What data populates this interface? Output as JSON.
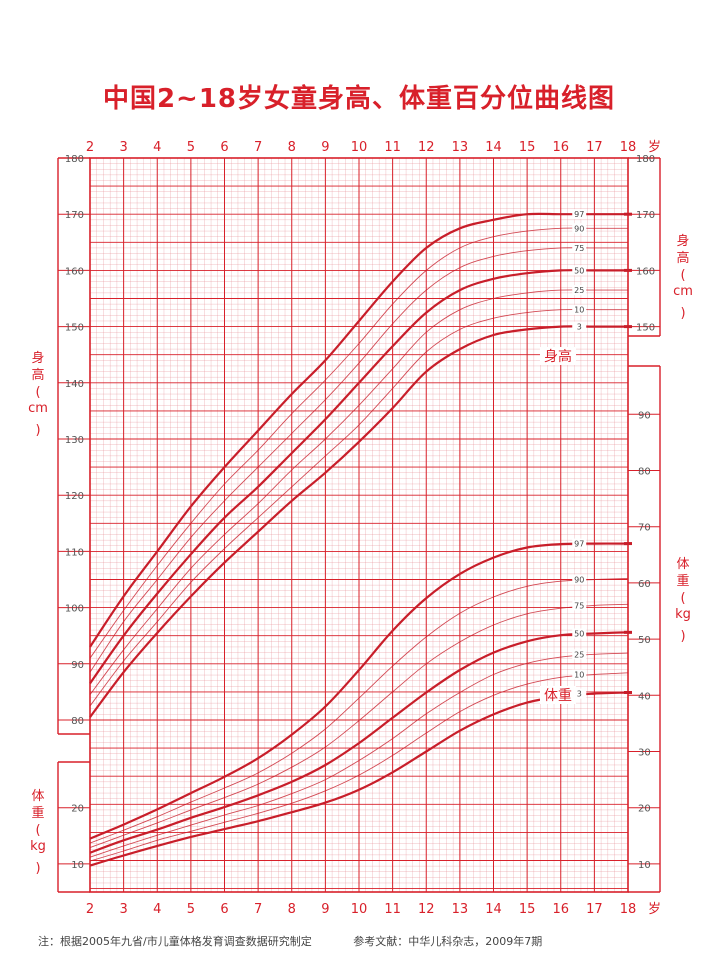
{
  "title": "中国2~18岁女童身高、体重百分位曲线图",
  "age_unit": "岁",
  "height_axis_label": [
    "身",
    "高",
    "(",
    "cm",
    ")"
  ],
  "weight_axis_label": [
    "体",
    "重",
    "(",
    "kg",
    ")"
  ],
  "height_curve_label": "身高",
  "weight_curve_label": "体重",
  "footer": {
    "note": "注：根据2005年九省/市儿童体格发育调查数据研究制定",
    "reference": "参考文献：中华儿科杂志，2009年7期"
  },
  "colors": {
    "accent": "#d8202a",
    "grid": "#e58a92",
    "curve": "#c81e2a"
  },
  "chart_data": {
    "type": "line",
    "x_label": "岁",
    "x": [
      2,
      3,
      4,
      5,
      6,
      7,
      8,
      9,
      10,
      11,
      12,
      13,
      14,
      15,
      16,
      17,
      18
    ],
    "x_range": [
      2,
      18
    ],
    "x_ticks": [
      2,
      3,
      4,
      5,
      6,
      7,
      8,
      9,
      10,
      11,
      12,
      13,
      14,
      15,
      16,
      17,
      18
    ],
    "height": {
      "ylabel": "身高(cm)",
      "left_axis_range": [
        80,
        180
      ],
      "left_ticks": [
        80,
        90,
        100,
        110,
        120,
        130,
        140,
        150,
        160,
        170,
        180
      ],
      "right_ticks": [
        150,
        160,
        170,
        180
      ],
      "series": [
        {
          "name": "3",
          "values": [
            80.5,
            88.5,
            95.5,
            102.0,
            108.0,
            113.5,
            119.0,
            124.0,
            129.5,
            135.5,
            142.0,
            146.0,
            148.5,
            149.5,
            150.0,
            150.0,
            150.0
          ]
        },
        {
          "name": "10",
          "values": [
            82.5,
            90.5,
            97.5,
            104.5,
            110.5,
            116.0,
            121.5,
            127.0,
            132.5,
            139.0,
            145.5,
            149.5,
            151.5,
            152.5,
            153.0,
            153.0,
            153.0
          ]
        },
        {
          "name": "25",
          "values": [
            84.5,
            92.5,
            99.8,
            107.0,
            113.0,
            118.5,
            124.5,
            130.0,
            136.0,
            142.5,
            149.0,
            153.0,
            155.0,
            156.0,
            156.5,
            156.5,
            156.5
          ]
        },
        {
          "name": "50",
          "values": [
            86.5,
            95.0,
            102.5,
            109.5,
            116.0,
            121.5,
            127.5,
            133.5,
            140.0,
            146.5,
            152.5,
            156.5,
            158.5,
            159.5,
            160.0,
            160.0,
            160.0
          ]
        },
        {
          "name": "75",
          "values": [
            88.5,
            97.5,
            105.0,
            112.5,
            119.0,
            125.0,
            131.0,
            137.0,
            143.5,
            150.5,
            156.5,
            160.5,
            162.5,
            163.5,
            164.0,
            164.0,
            164.0
          ]
        },
        {
          "name": "90",
          "values": [
            91.0,
            99.5,
            107.5,
            115.0,
            122.0,
            128.0,
            134.5,
            140.5,
            147.0,
            154.0,
            160.0,
            164.0,
            166.0,
            167.0,
            167.5,
            167.5,
            167.5
          ]
        },
        {
          "name": "97",
          "values": [
            93.0,
            102.0,
            110.0,
            118.0,
            125.0,
            131.5,
            138.0,
            144.0,
            151.0,
            158.0,
            164.0,
            167.5,
            169.0,
            170.0,
            170.0,
            170.0,
            170.0
          ]
        }
      ],
      "bold_series": [
        "3",
        "50",
        "97"
      ]
    },
    "weight": {
      "ylabel": "体重(kg)",
      "left_axis_range": [
        5,
        25
      ],
      "left_ticks": [
        10,
        20
      ],
      "right_axis_range": [
        5,
        95
      ],
      "right_ticks": [
        10,
        20,
        30,
        40,
        50,
        60,
        70,
        80,
        90
      ],
      "series": [
        {
          "name": "3",
          "values": [
            9.7,
            11.5,
            13.2,
            14.8,
            16.2,
            17.6,
            19.2,
            20.9,
            23.2,
            26.3,
            30.0,
            33.7,
            36.6,
            38.7,
            39.8,
            40.3,
            40.5
          ]
        },
        {
          "name": "10",
          "values": [
            10.5,
            12.3,
            14.2,
            15.8,
            17.4,
            19.0,
            20.8,
            23.0,
            25.8,
            29.3,
            33.3,
            37.1,
            40.0,
            42.0,
            43.2,
            43.7,
            44.0
          ]
        },
        {
          "name": "25",
          "values": [
            11.2,
            13.2,
            15.1,
            16.9,
            18.7,
            20.4,
            22.5,
            25.0,
            28.4,
            32.3,
            36.7,
            40.5,
            43.7,
            45.7,
            46.8,
            47.3,
            47.5
          ]
        },
        {
          "name": "50",
          "values": [
            12.0,
            14.2,
            16.1,
            18.2,
            20.1,
            22.2,
            24.6,
            27.6,
            31.5,
            36.0,
            40.5,
            44.5,
            47.6,
            49.6,
            50.7,
            51.0,
            51.2
          ]
        },
        {
          "name": "75",
          "values": [
            12.9,
            15.1,
            17.3,
            19.6,
            21.8,
            24.2,
            27.2,
            30.8,
            35.5,
            40.6,
            45.6,
            49.5,
            52.5,
            54.5,
            55.5,
            56.0,
            56.2
          ]
        },
        {
          "name": "90",
          "values": [
            13.7,
            16.0,
            18.4,
            21.0,
            23.5,
            26.2,
            29.7,
            34.0,
            39.5,
            45.2,
            50.4,
            54.6,
            57.5,
            59.4,
            60.3,
            60.6,
            60.8
          ]
        },
        {
          "name": "97",
          "values": [
            14.5,
            17.0,
            19.7,
            22.6,
            25.5,
            28.8,
            33.0,
            38.0,
            44.5,
            51.5,
            57.3,
            61.6,
            64.5,
            66.3,
            66.9,
            67.0,
            67.0
          ]
        }
      ],
      "bold_series": [
        "3",
        "50",
        "97"
      ]
    }
  }
}
